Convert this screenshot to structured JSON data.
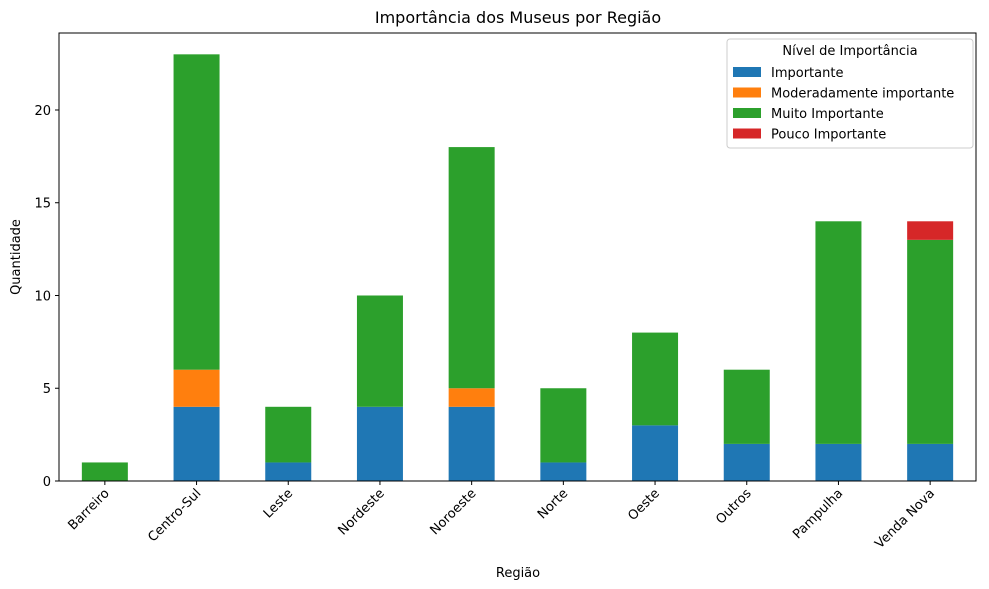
{
  "chart_data": {
    "type": "bar",
    "stacked": true,
    "title": "Importância dos Museus por Região",
    "xlabel": "Região",
    "ylabel": "Quantidade",
    "ylim": [
      0,
      24.15
    ],
    "yticks": [
      0,
      5,
      10,
      15,
      20
    ],
    "categories": [
      "Barreiro",
      "Centro-Sul",
      "Leste",
      "Nordeste",
      "Noroeste",
      "Norte",
      "Oeste",
      "Outros",
      "Pampulha",
      "Venda Nova"
    ],
    "legend_title": "Nível de Importância",
    "legend_position": "top-right",
    "grid": false,
    "series": [
      {
        "name": "Importante",
        "color": "#1f77b4",
        "values": [
          0,
          4,
          1,
          4,
          4,
          1,
          3,
          2,
          2,
          2
        ]
      },
      {
        "name": "Moderadamente importante",
        "color": "#ff7f0e",
        "values": [
          0,
          2,
          0,
          0,
          1,
          0,
          0,
          0,
          0,
          0
        ]
      },
      {
        "name": "Muito Importante",
        "color": "#2ca02c",
        "values": [
          1,
          17,
          3,
          6,
          13,
          4,
          5,
          4,
          12,
          11
        ]
      },
      {
        "name": "Pouco Importante",
        "color": "#d62728",
        "values": [
          0,
          0,
          0,
          0,
          0,
          0,
          0,
          0,
          0,
          1
        ]
      }
    ]
  }
}
